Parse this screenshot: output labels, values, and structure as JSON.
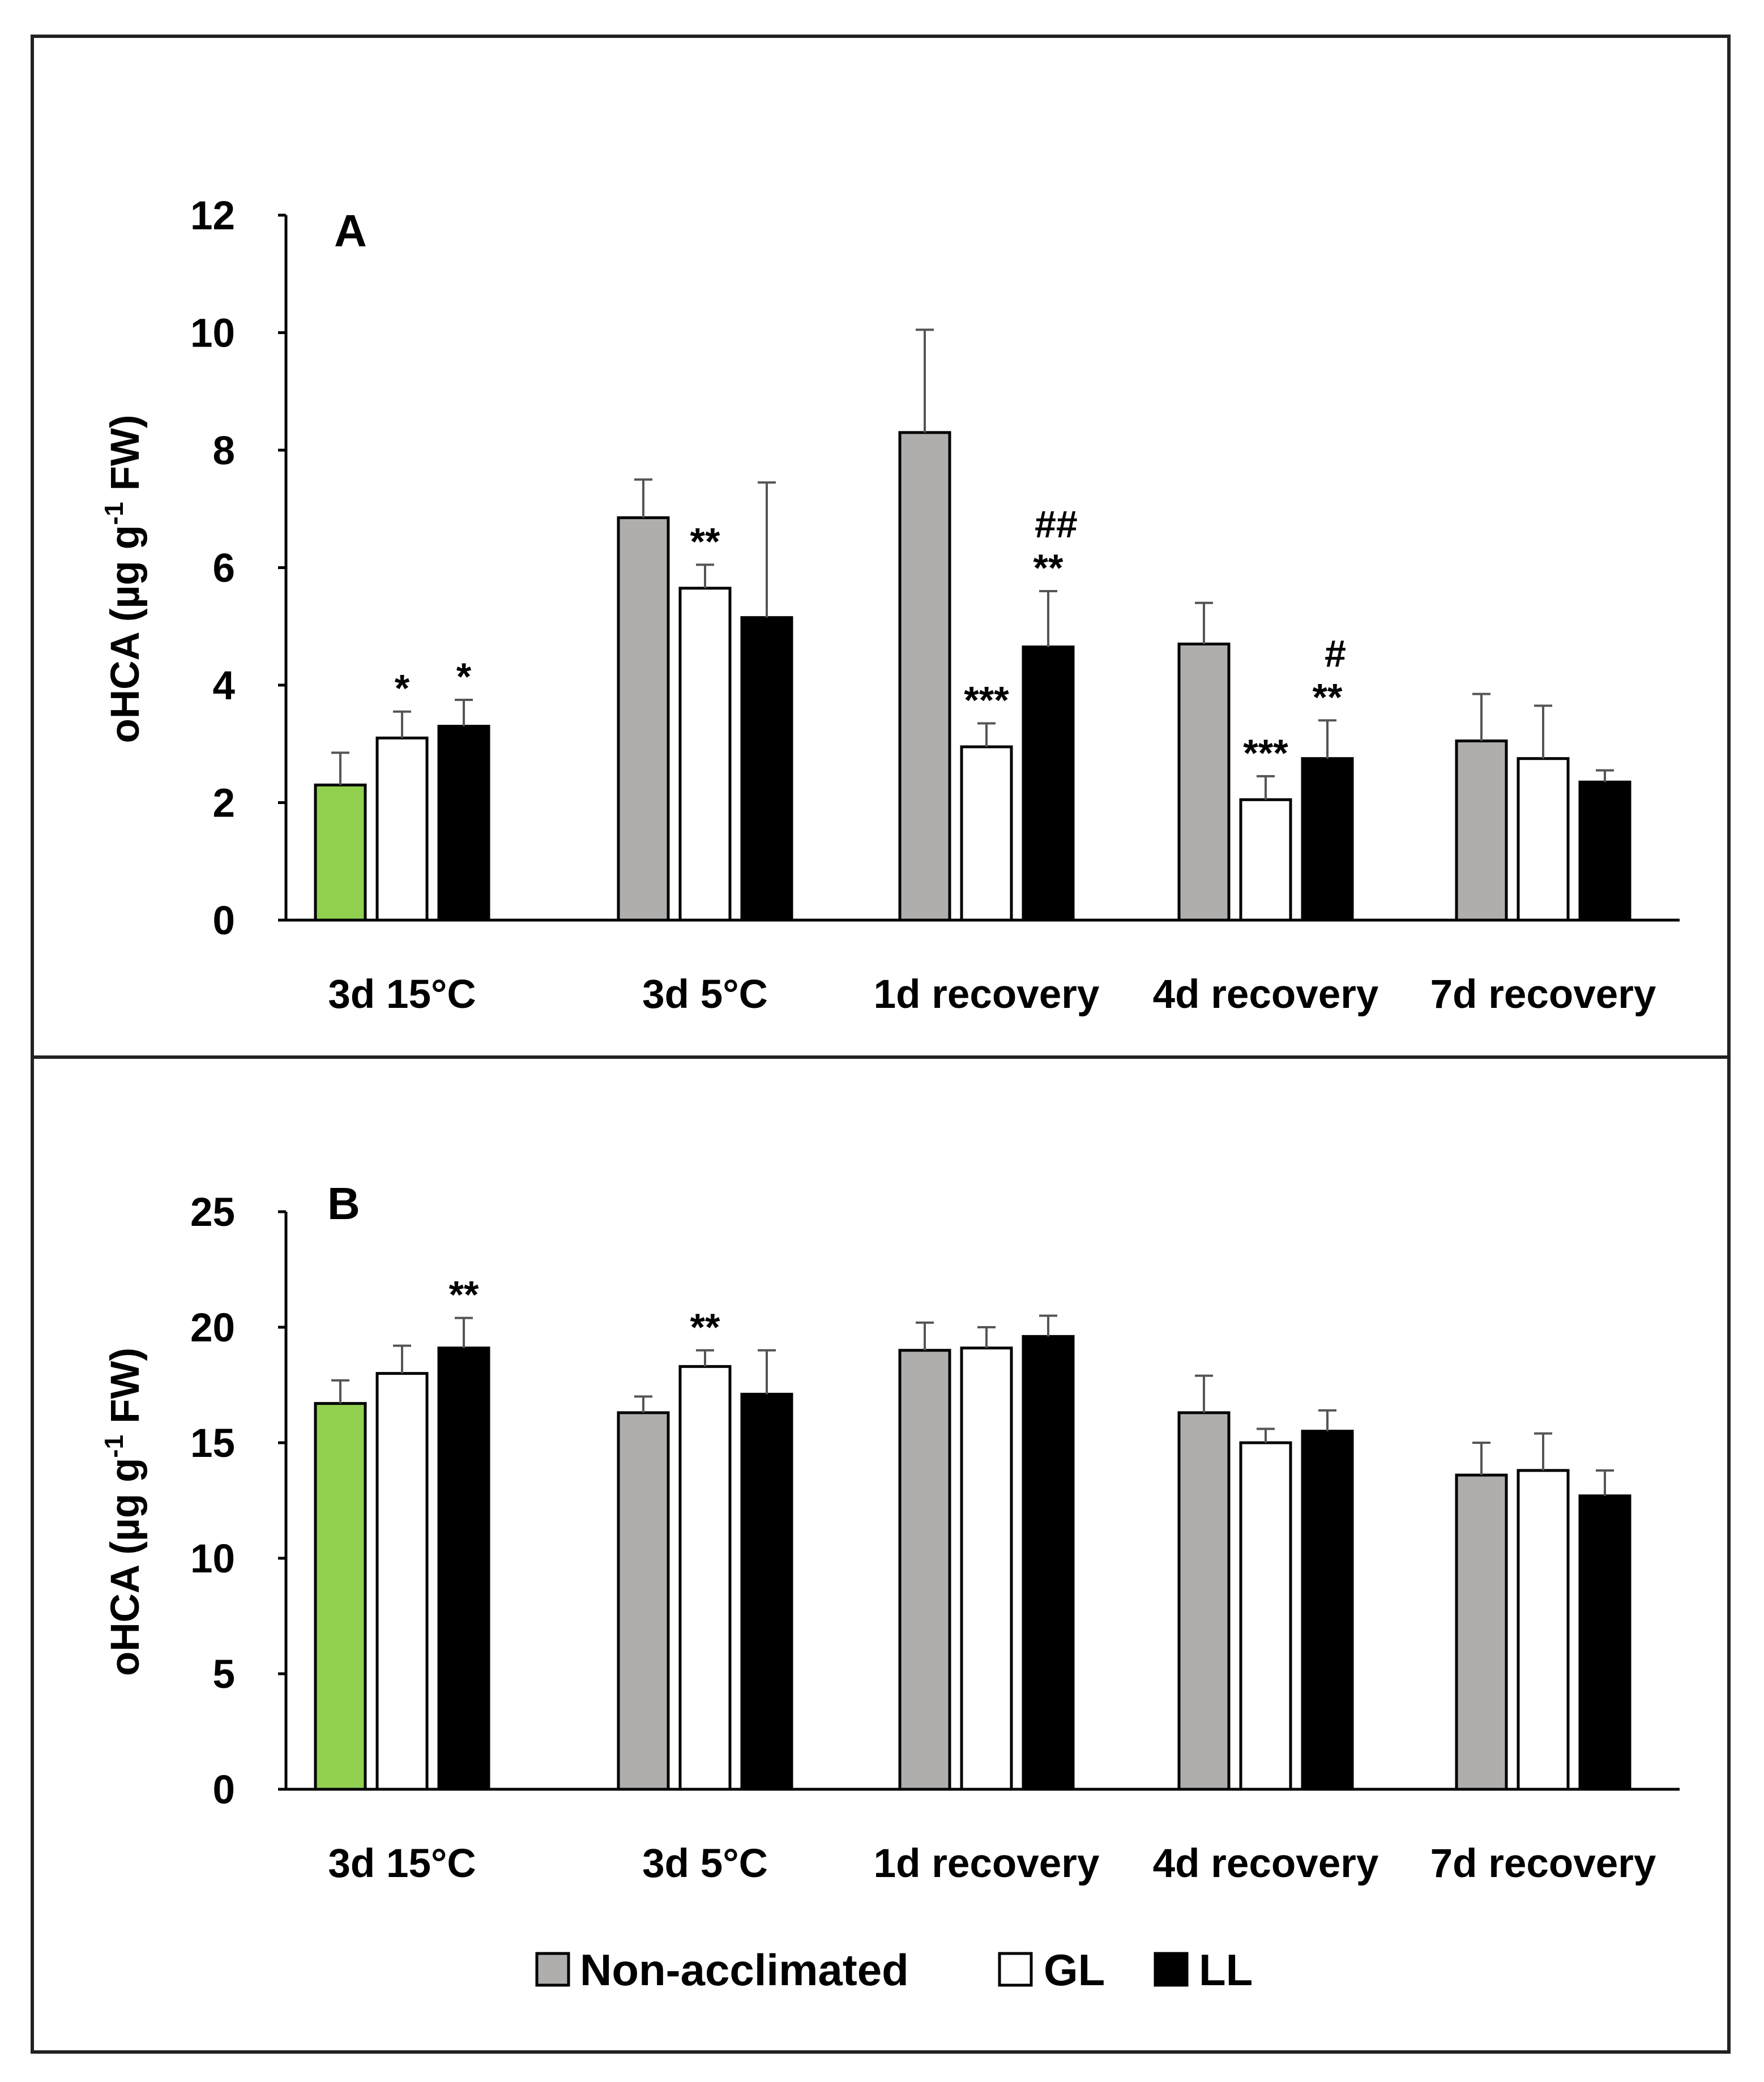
{
  "legend": {
    "items": [
      {
        "label": "Non-acclimated",
        "color": "#b0aeac"
      },
      {
        "label": "GL",
        "color": "#ffffff"
      },
      {
        "label": "LL",
        "color": "#000000"
      }
    ]
  },
  "colors": {
    "control": "#92d050",
    "non_acclimated": "#b0aeac",
    "GL": "#ffffff",
    "LL": "#000000",
    "frame": "#222222"
  },
  "chart_data": [
    {
      "type": "bar",
      "panel_label": "A",
      "ylabel_main": "oHCA (µg g",
      "ylabel_sup": "-1",
      "ylabel_end": " FW)",
      "ylim": [
        0,
        12
      ],
      "yticks": [
        0,
        2,
        4,
        6,
        8,
        10,
        12
      ],
      "categories": [
        "3d 15°C",
        "3d 5°C",
        "1d recovery",
        "4d recovery",
        "7d recovery"
      ],
      "series": [
        {
          "name": "Non-acclimated",
          "values": [
            2.3,
            6.85,
            8.3,
            4.7,
            3.05
          ],
          "errors": [
            0.55,
            0.65,
            1.75,
            0.7,
            0.8
          ]
        },
        {
          "name": "GL",
          "values": [
            3.1,
            5.65,
            2.95,
            2.05,
            2.75
          ],
          "errors": [
            0.45,
            0.4,
            0.4,
            0.4,
            0.9
          ]
        },
        {
          "name": "LL",
          "values": [
            3.3,
            5.15,
            4.65,
            2.75,
            2.35
          ],
          "errors": [
            0.45,
            2.3,
            0.95,
            0.65,
            0.2
          ]
        }
      ],
      "first_bar_color_note": "control",
      "annotations": [
        {
          "category": 0,
          "series": 1,
          "text": "*"
        },
        {
          "category": 0,
          "series": 2,
          "text": "*"
        },
        {
          "category": 1,
          "series": 1,
          "text": "**"
        },
        {
          "category": 2,
          "series": 1,
          "text": "***"
        },
        {
          "category": 2,
          "series": 2,
          "text": "**",
          "text2": "##"
        },
        {
          "category": 3,
          "series": 1,
          "text": "***"
        },
        {
          "category": 3,
          "series": 2,
          "text": "**",
          "text2": "#"
        }
      ]
    },
    {
      "type": "bar",
      "panel_label": "B",
      "ylabel_main": "oHCA (µg g",
      "ylabel_sup": "-1",
      "ylabel_end": " FW)",
      "ylim": [
        0,
        25
      ],
      "yticks": [
        0,
        5,
        10,
        15,
        20,
        25
      ],
      "categories": [
        "3d 15°C",
        "3d 5°C",
        "1d recovery",
        "4d recovery",
        "7d recovery"
      ],
      "series": [
        {
          "name": "Non-acclimated",
          "values": [
            16.7,
            16.3,
            19.0,
            16.3,
            13.6
          ],
          "errors": [
            1.0,
            0.7,
            1.2,
            1.6,
            1.4
          ]
        },
        {
          "name": "GL",
          "values": [
            18.0,
            18.3,
            19.1,
            15.0,
            13.8
          ],
          "errors": [
            1.2,
            0.7,
            0.9,
            0.6,
            1.6
          ]
        },
        {
          "name": "LL",
          "values": [
            19.1,
            17.1,
            19.6,
            15.5,
            12.7
          ],
          "errors": [
            1.3,
            1.9,
            0.9,
            0.9,
            1.1
          ]
        }
      ],
      "first_bar_color_note": "control",
      "annotations": [
        {
          "category": 0,
          "series": 2,
          "text": "**"
        },
        {
          "category": 1,
          "series": 1,
          "text": "**"
        }
      ]
    }
  ]
}
